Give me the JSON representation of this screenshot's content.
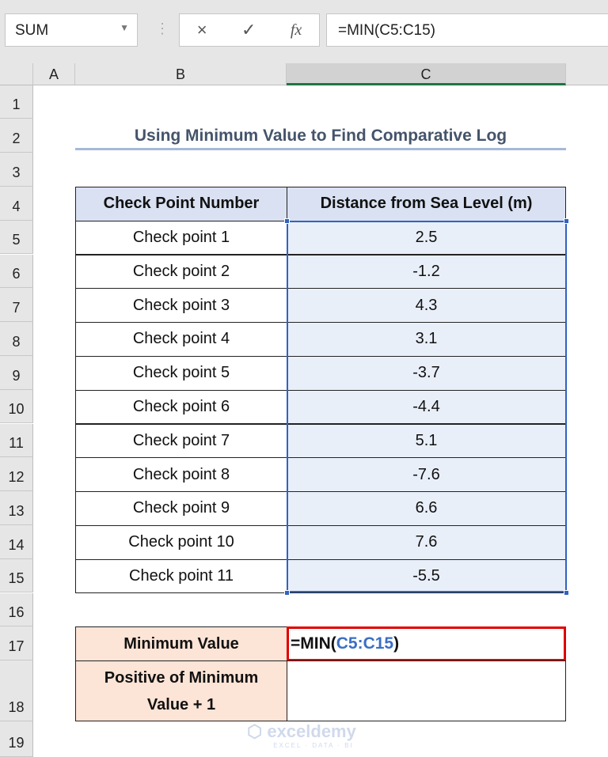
{
  "name_box": "SUM",
  "formula_bar": {
    "cancel_icon": "×",
    "enter_icon": "✓",
    "fx_icon": "fx",
    "formula": "=MIN(C5:C15)"
  },
  "columns": [
    "A",
    "B",
    "C"
  ],
  "rows": [
    "1",
    "2",
    "3",
    "4",
    "5",
    "6",
    "7",
    "8",
    "9",
    "10",
    "11",
    "12",
    "13",
    "14",
    "15",
    "16",
    "17",
    "18",
    "19"
  ],
  "title": "Using Minimum Value to Find Comparative Log",
  "table": {
    "headers": [
      "Check Point Number",
      "Distance from Sea Level (m)"
    ],
    "rows": [
      [
        "Check point 1",
        "2.5"
      ],
      [
        "Check point 2",
        "-1.2"
      ],
      [
        "Check point 3",
        "4.3"
      ],
      [
        "Check point 4",
        "3.1"
      ],
      [
        "Check point 5",
        "-3.7"
      ],
      [
        "Check point 6",
        "-4.4"
      ],
      [
        "Check point 7",
        "5.1"
      ],
      [
        "Check point 8",
        "-7.6"
      ],
      [
        "Check point 9",
        "6.6"
      ],
      [
        "Check point 10",
        "7.6"
      ],
      [
        "Check point 11",
        "-5.5"
      ]
    ]
  },
  "summary": {
    "min_label": "Minimum Value",
    "min_formula_prefix": "=MIN(",
    "min_formula_ref": "C5:C15",
    "min_formula_suffix": ")",
    "pos_label": "Positive of Minimum Value + 1",
    "pos_value": ""
  },
  "watermark": {
    "name": "exceldemy",
    "tagline": "EXCEL · DATA · BI"
  },
  "colors": {
    "header_fill": "#d9e1f2",
    "data_fill": "#e9eff9",
    "summary_fill": "#fce4d6",
    "selection": "#2f63c0",
    "active_border": "#e00000"
  }
}
